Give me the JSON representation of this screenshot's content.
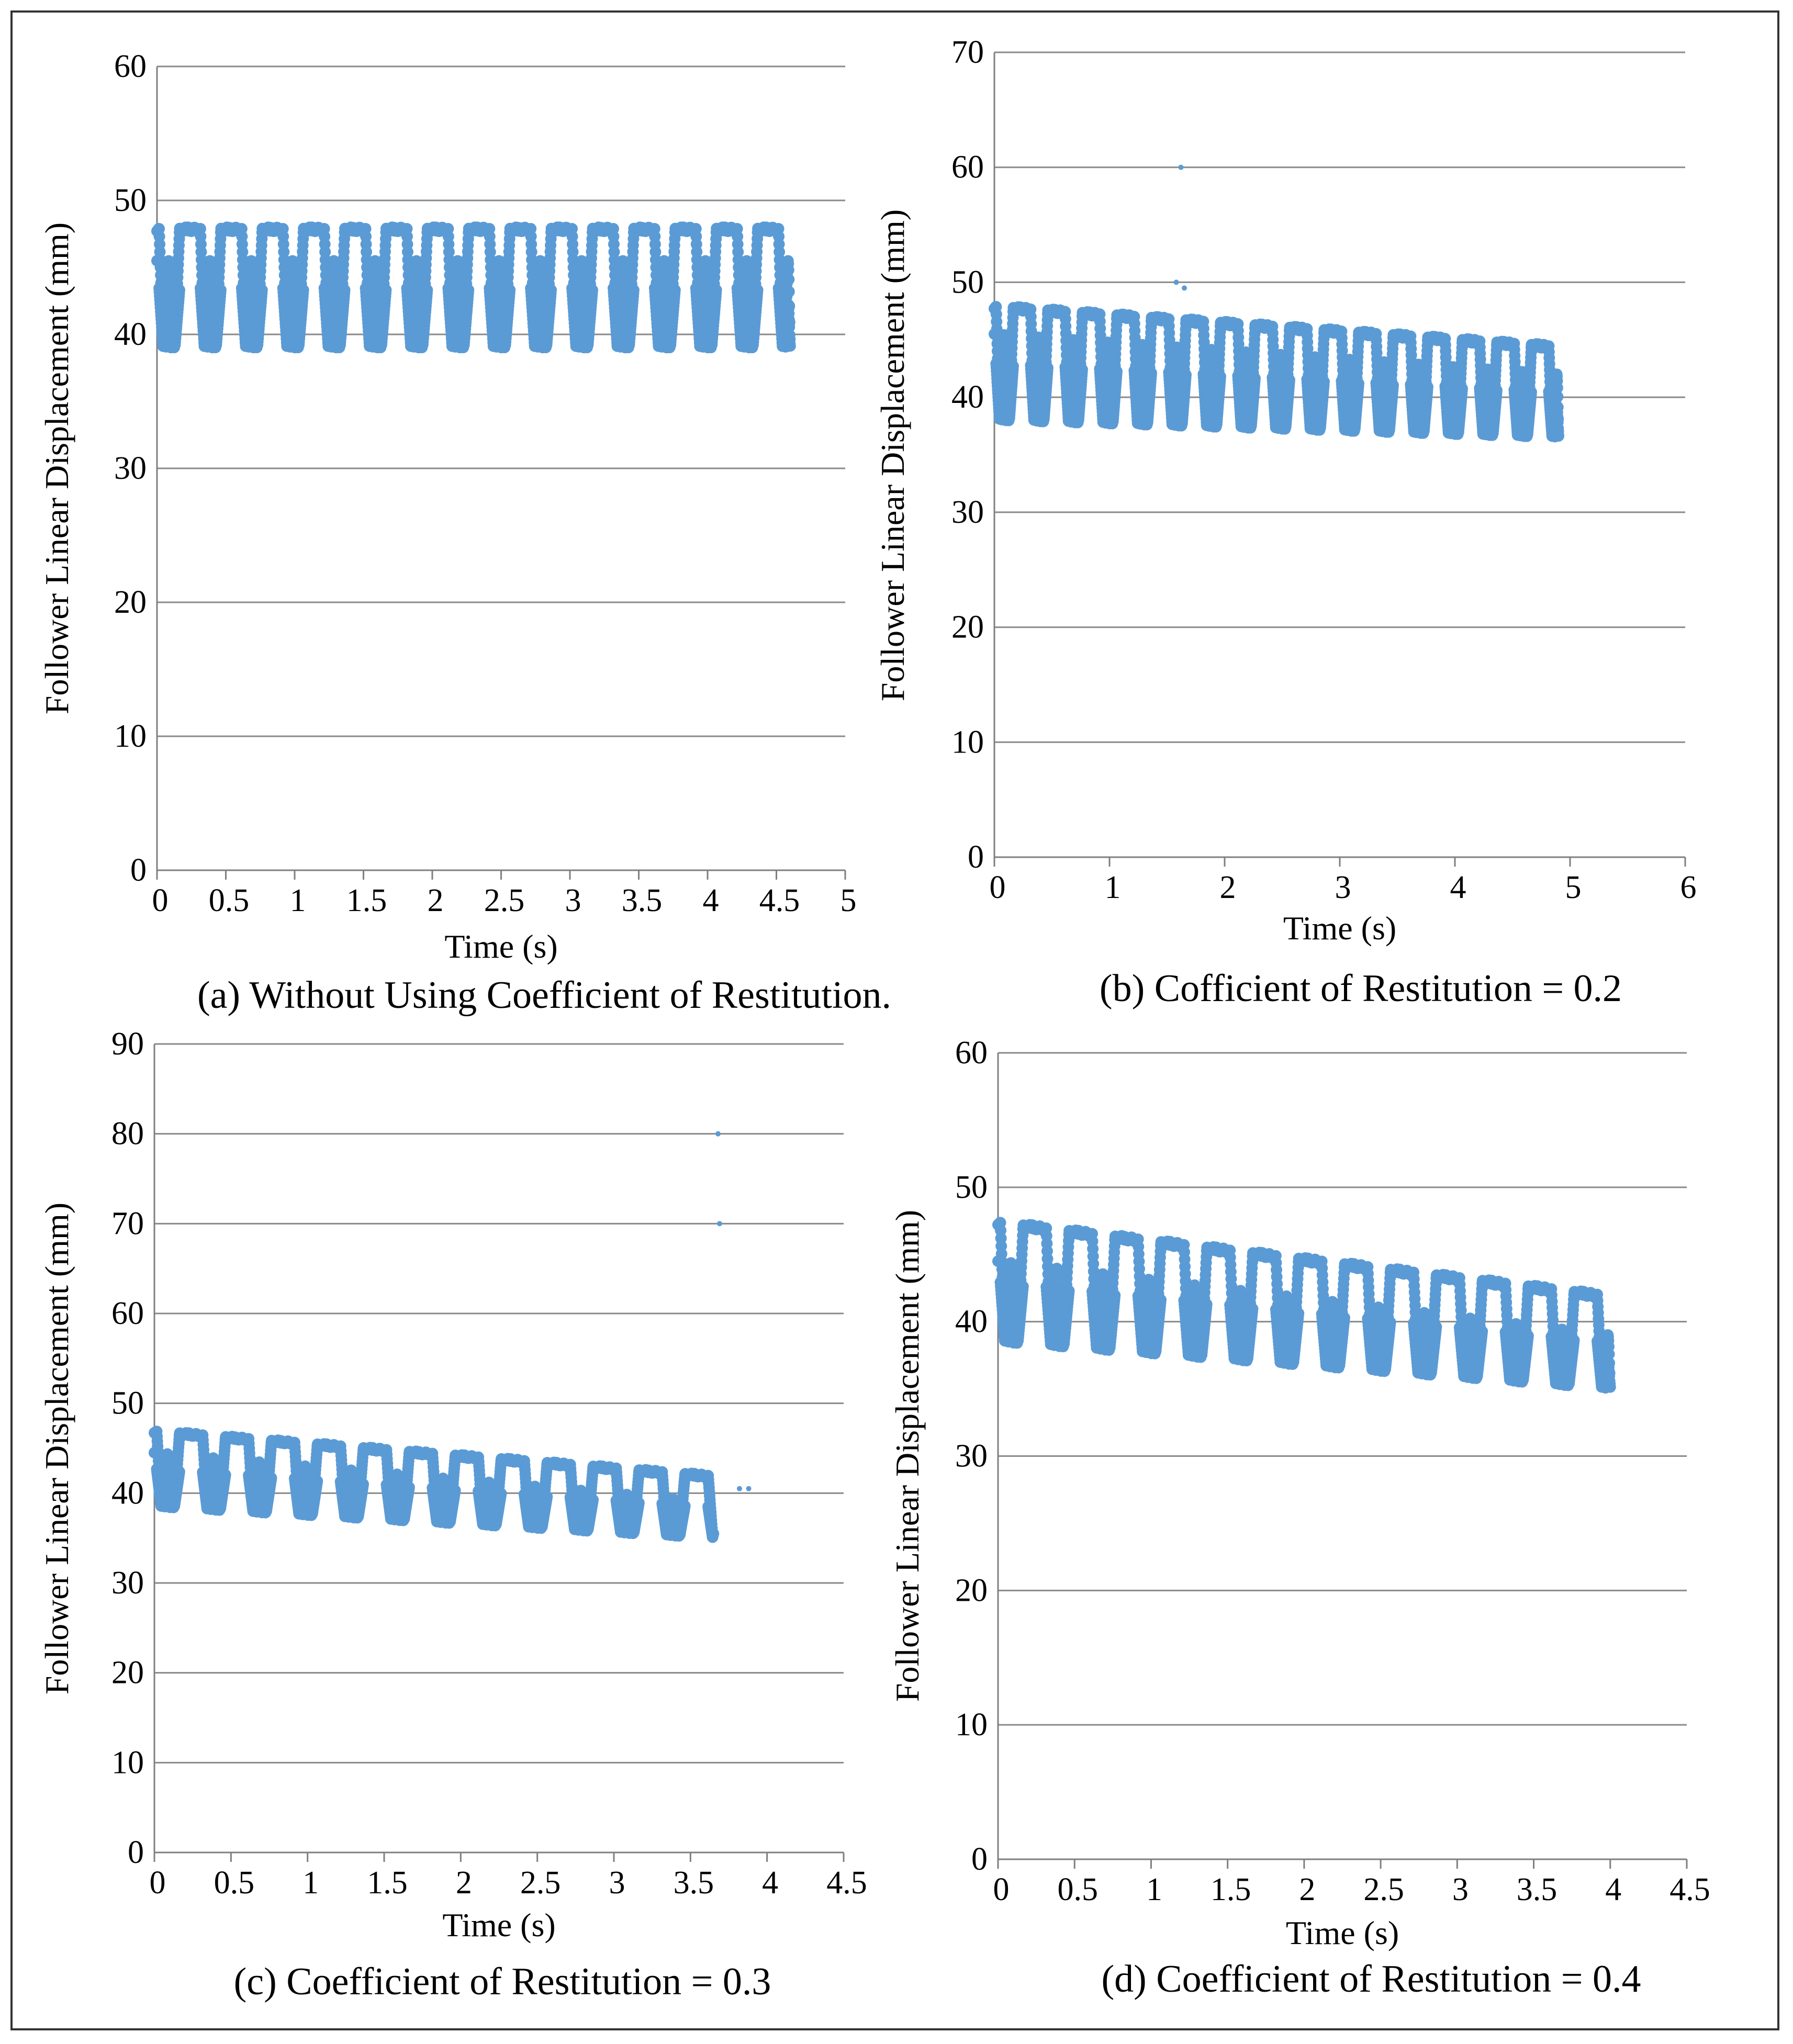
{
  "chart_data": [
    {
      "id": "a",
      "type": "scatter",
      "caption": "(a) Without Using Coefficient of Restitution.",
      "xlabel": "Time (s)",
      "ylabel": "Follower Linear Displacement (mm)",
      "xlim": [
        0,
        5
      ],
      "ylim": [
        0,
        60
      ],
      "xticks": [
        "0",
        "0.5",
        "1",
        "1.5",
        "2",
        "2.5",
        "3",
        "3.5",
        "4",
        "4.5",
        "5"
      ],
      "yticks": [
        "0",
        "10",
        "20",
        "30",
        "40",
        "50",
        "60"
      ],
      "grid": true,
      "color": "#5b9bd5",
      "series": {
        "x_end": 4.6,
        "period": 0.3,
        "cycles": 15,
        "peak_start": 48,
        "peak_end": 48,
        "mid_start": 45.5,
        "mid_end": 45.5,
        "min_start": 39,
        "min_end": 39,
        "outliers": []
      }
    },
    {
      "id": "b",
      "type": "scatter",
      "caption": "(b) Cofficient of Restitution  = 0.2",
      "xlabel": "Time (s)",
      "ylabel": "Follower Linear Displacement (mm)",
      "xlim": [
        0,
        6
      ],
      "ylim": [
        0,
        70
      ],
      "xticks": [
        "0",
        "1",
        "2",
        "3",
        "4",
        "5",
        "6"
      ],
      "yticks": [
        "0",
        "10",
        "20",
        "30",
        "40",
        "50",
        "60",
        "70"
      ],
      "grid": true,
      "color": "#5b9bd5",
      "series": {
        "x_end": 4.9,
        "period": 0.3,
        "cycles": 16,
        "peak_start": 48,
        "peak_end": 44.5,
        "mid_start": 45.5,
        "mid_end": 42,
        "min_start": 38,
        "min_end": 36.5,
        "outliers": [
          [
            1.62,
            60
          ],
          [
            1.58,
            50
          ],
          [
            1.65,
            49.5
          ]
        ]
      }
    },
    {
      "id": "c",
      "type": "scatter",
      "caption": "(c) Coefficient of Restitution = 0.3",
      "xlabel": "Time (s)",
      "ylabel": "Follower Linear Displacement (mm)",
      "xlim": [
        0,
        4.5
      ],
      "ylim": [
        0,
        90
      ],
      "xticks": [
        "0",
        "0.5",
        "1",
        "1.5",
        "2",
        "2.5",
        "3",
        "3.5",
        "4",
        "4.5"
      ],
      "yticks": [
        "0",
        "10",
        "20",
        "30",
        "40",
        "50",
        "60",
        "70",
        "80",
        "90"
      ],
      "grid": true,
      "color": "#5b9bd5",
      "series": {
        "x_end": 3.65,
        "period": 0.3,
        "cycles": 12,
        "peak_start": 47,
        "peak_end": 42,
        "mid_start": 44.5,
        "mid_end": 39,
        "min_start": 38.5,
        "min_end": 35,
        "outliers": [
          [
            3.68,
            80
          ],
          [
            3.69,
            70
          ],
          [
            3.88,
            40.5
          ],
          [
            3.82,
            40.5
          ]
        ]
      }
    },
    {
      "id": "d",
      "type": "scatter",
      "caption": "(d) Coefficient of Restitution = 0.4",
      "xlabel": "Time (s)",
      "ylabel": "Follower Linear Displacement (mm)",
      "xlim": [
        0,
        4.5
      ],
      "ylim": [
        0,
        60
      ],
      "xticks": [
        "0",
        "0.5",
        "1",
        "1.5",
        "2",
        "2.5",
        "3",
        "3.5",
        "4",
        "4.5"
      ],
      "yticks": [
        "0",
        "10",
        "20",
        "30",
        "40",
        "50",
        "60"
      ],
      "grid": true,
      "color": "#5b9bd5",
      "series": {
        "x_end": 4.0,
        "period": 0.3,
        "cycles": 13,
        "peak_start": 47.5,
        "peak_end": 42,
        "mid_start": 44.5,
        "mid_end": 39,
        "min_start": 38.5,
        "min_end": 35,
        "outliers": []
      }
    }
  ]
}
